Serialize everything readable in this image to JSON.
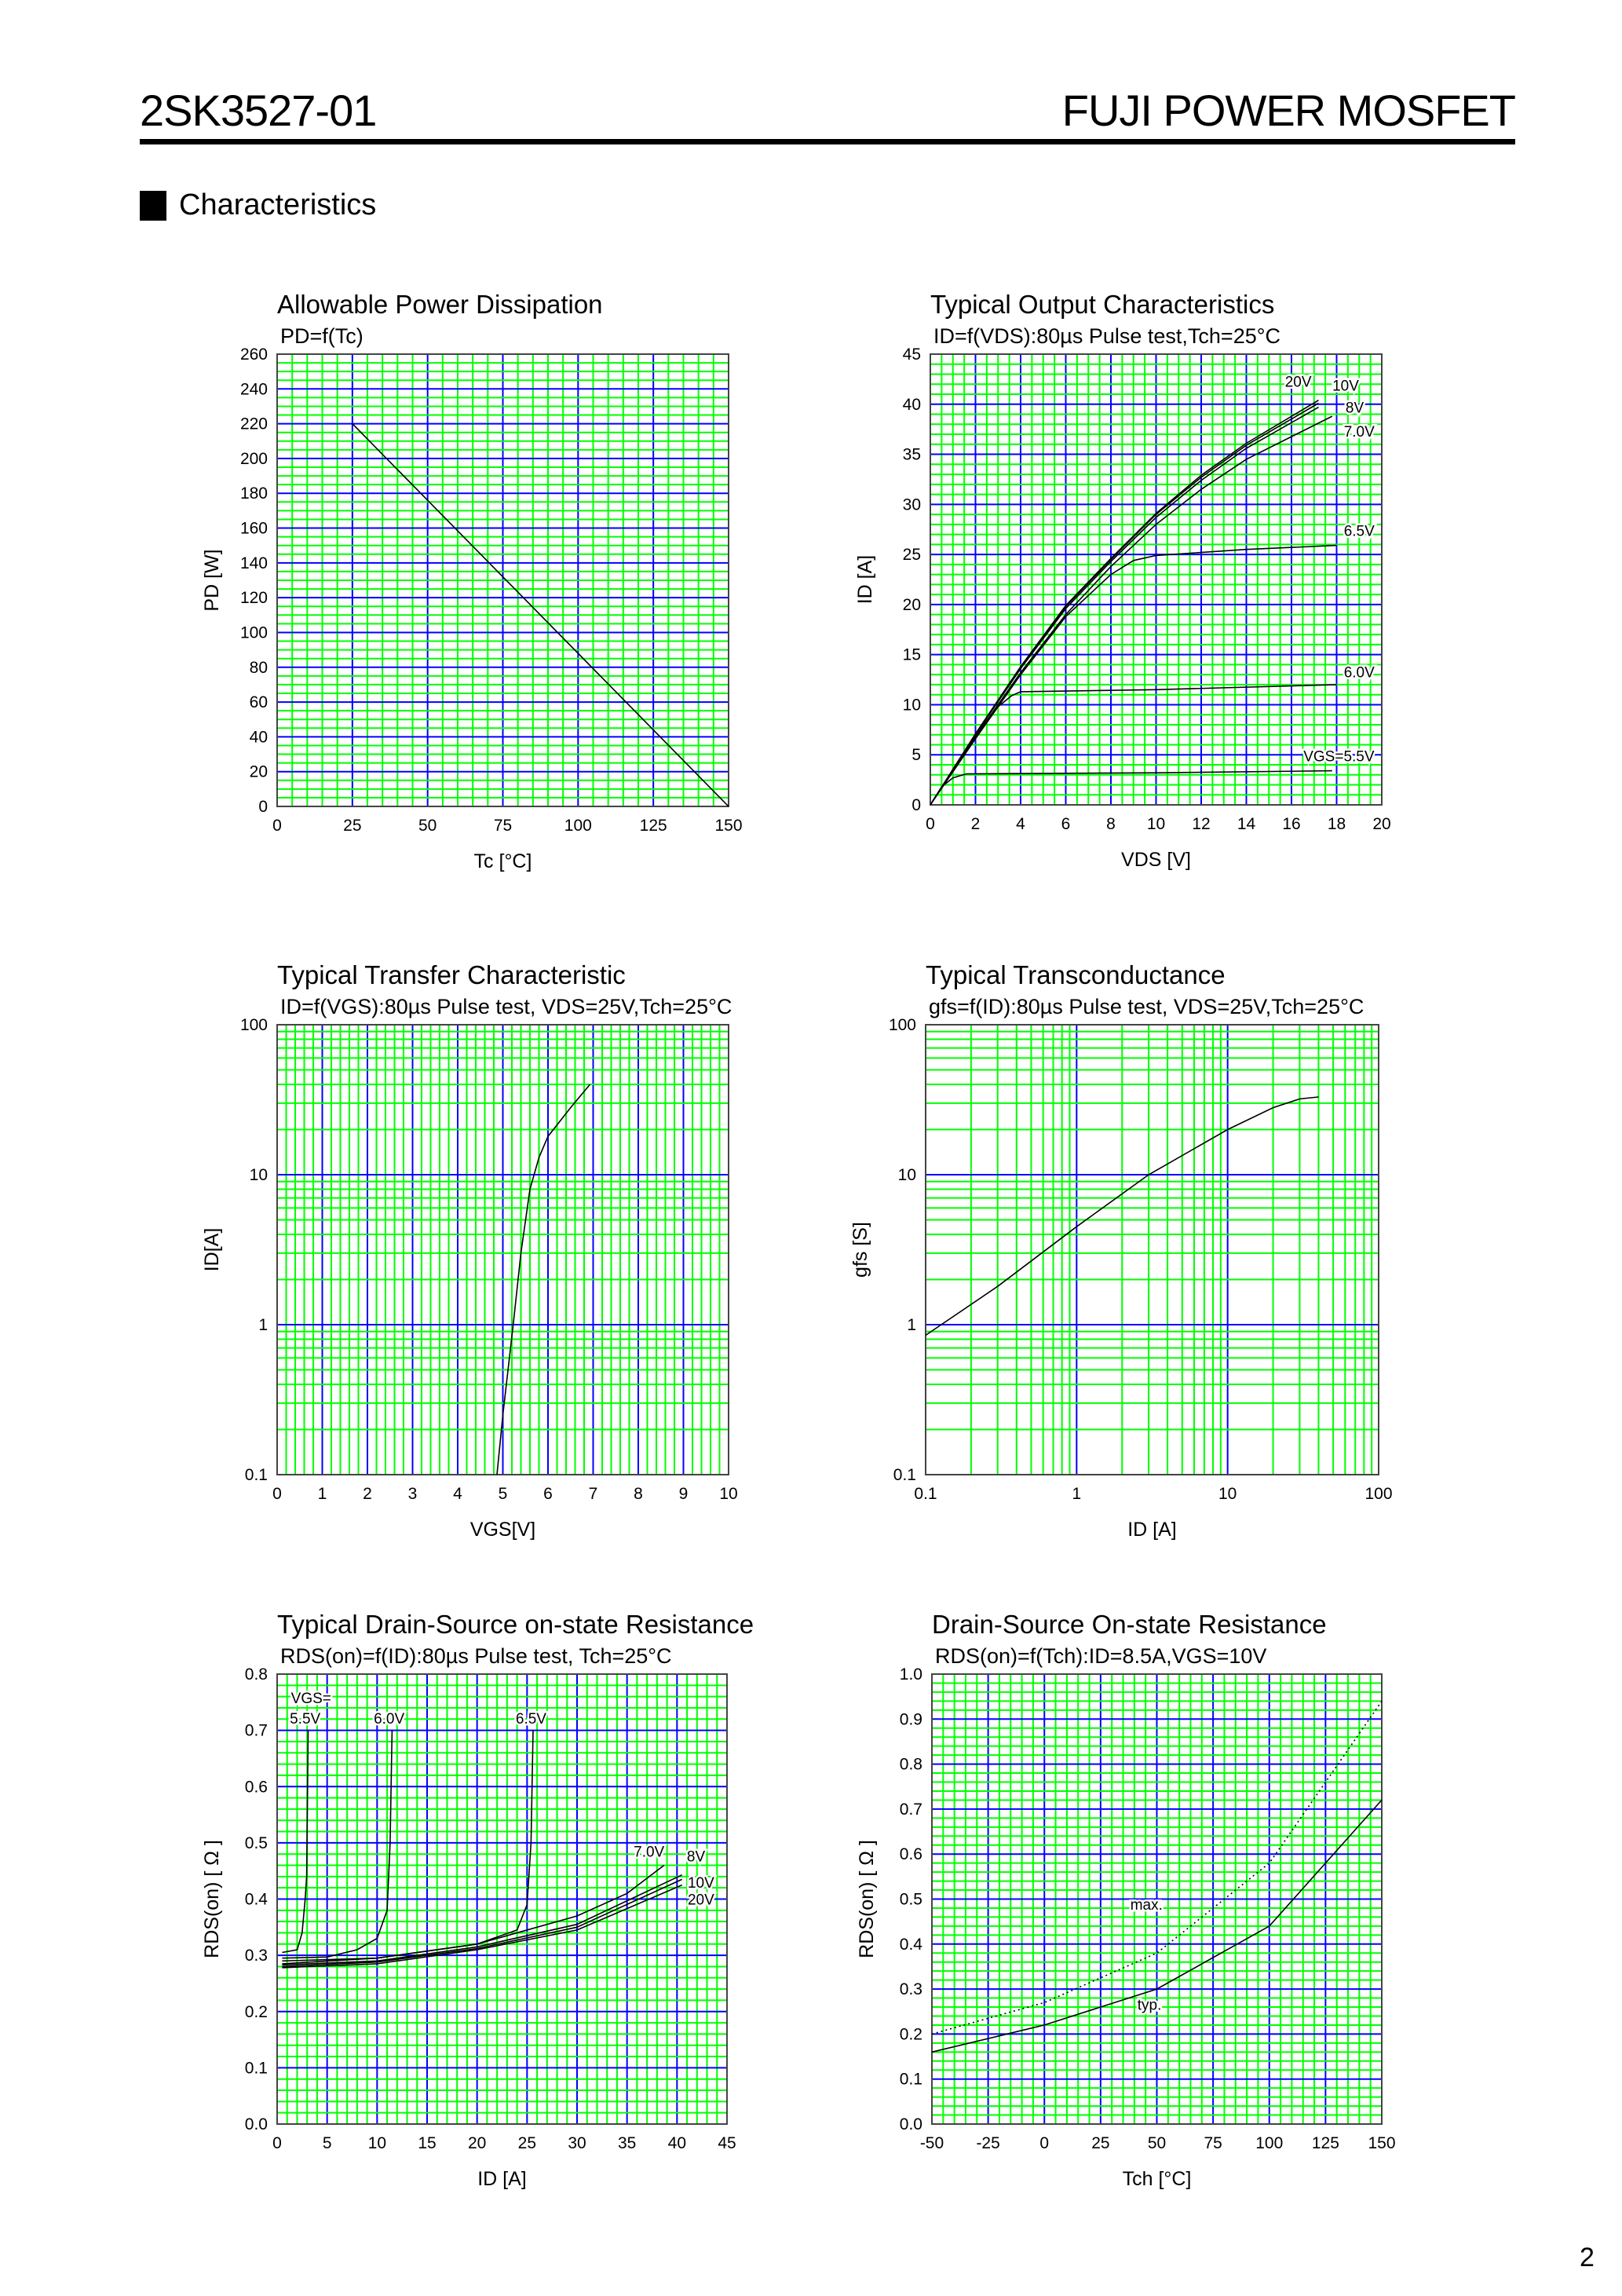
{
  "header": {
    "part_number": "2SK3527-01",
    "brand": "FUJI POWER MOSFET"
  },
  "section_title": "Characteristics",
  "page_number": "2",
  "colors": {
    "grid_minor": "#00ff00",
    "grid_major": "#0000ff",
    "curve": "#000000"
  },
  "chart_data": [
    {
      "type": "line",
      "title": "Allowable Power Dissipation",
      "subtitle": "PD=f(Tc)",
      "xlabel": "Tc [°C]",
      "ylabel": "PD [W]",
      "xlim": [
        0,
        150
      ],
      "ylim": [
        0,
        260
      ],
      "xscale": "linear",
      "yscale": "linear",
      "grid": true,
      "xticks": [
        "0",
        "25",
        "50",
        "75",
        "100",
        "125",
        "150"
      ],
      "yticks": [
        "0",
        "20",
        "40",
        "60",
        "80",
        "100",
        "120",
        "140",
        "160",
        "180",
        "200",
        "220",
        "240",
        "260"
      ],
      "series": [
        {
          "x": [
            25,
            150
          ],
          "y": [
            220,
            0
          ]
        }
      ]
    },
    {
      "type": "line",
      "title": "Typical Output Characteristics",
      "subtitle": "ID=f(VDS):80µs Pulse test,Tch=25°C",
      "xlabel": "VDS [V]",
      "ylabel": "ID [A]",
      "xlim": [
        0,
        20
      ],
      "ylim": [
        0,
        45
      ],
      "xscale": "linear",
      "yscale": "linear",
      "grid": true,
      "xticks": [
        "0",
        "2",
        "4",
        "6",
        "8",
        "10",
        "12",
        "14",
        "16",
        "18",
        "20"
      ],
      "yticks": [
        "0",
        "5",
        "10",
        "15",
        "20",
        "25",
        "30",
        "35",
        "40",
        "45"
      ],
      "series": [
        {
          "name": "20V",
          "x": [
            0,
            2,
            4,
            6,
            8,
            10,
            12,
            14,
            17.2
          ],
          "y": [
            0,
            7.1,
            13.8,
            19.9,
            24.6,
            29.1,
            32.9,
            36.1,
            40.4
          ]
        },
        {
          "name": "10V",
          "x": [
            0,
            2,
            4,
            6,
            8,
            10,
            12,
            14,
            17.2
          ],
          "y": [
            0,
            7.0,
            13.7,
            19.8,
            24.5,
            29.0,
            32.7,
            35.9,
            40.1
          ]
        },
        {
          "name": "8V",
          "x": [
            0,
            2,
            4,
            6,
            8,
            10,
            12,
            14,
            17.2
          ],
          "y": [
            0,
            7.0,
            13.6,
            19.6,
            24.3,
            28.7,
            32.4,
            35.6,
            39.7
          ]
        },
        {
          "name": "7.0V",
          "x": [
            0,
            2,
            4,
            6,
            8,
            10,
            12,
            14,
            17.8
          ],
          "y": [
            0,
            6.8,
            13.2,
            19.0,
            23.8,
            28.0,
            31.5,
            34.5,
            38.8
          ]
        },
        {
          "name": "6.5V",
          "x": [
            0,
            2,
            4,
            6,
            8,
            9,
            10,
            14,
            18
          ],
          "y": [
            0,
            6.6,
            13.0,
            18.8,
            23.0,
            24.4,
            24.9,
            25.5,
            25.9
          ]
        },
        {
          "name": "6.0V",
          "x": [
            0,
            1,
            2,
            3,
            3.6,
            4,
            10,
            18
          ],
          "y": [
            0,
            3.5,
            7.0,
            9.8,
            10.9,
            11.3,
            11.5,
            12.0
          ]
        },
        {
          "name": "VGS=5.5V",
          "x": [
            0,
            0.5,
            1,
            1.6,
            10,
            17.8
          ],
          "y": [
            0,
            1.8,
            2.7,
            3.1,
            3.2,
            3.4
          ]
        }
      ]
    },
    {
      "type": "line",
      "title": "Typical Transfer Characteristic",
      "subtitle": "ID=f(VGS):80µs Pulse test, VDS=25V,Tch=25°C",
      "xlabel": "VGS[V]",
      "ylabel": "ID[A]",
      "xlim": [
        0,
        10
      ],
      "ylim": [
        0.1,
        100
      ],
      "xscale": "linear",
      "yscale": "log",
      "grid": true,
      "xticks": [
        "0",
        "1",
        "2",
        "3",
        "4",
        "5",
        "6",
        "7",
        "8",
        "9",
        "10"
      ],
      "yticks": [
        "0.1",
        "1",
        "10",
        "100"
      ],
      "series": [
        {
          "x": [
            4.87,
            5.0,
            5.23,
            5.4,
            5.6,
            5.8,
            6.0,
            6.5,
            6.93
          ],
          "y": [
            0.1,
            0.25,
            1,
            3,
            8,
            13,
            18,
            28,
            40
          ]
        }
      ]
    },
    {
      "type": "line",
      "title": "Typical Transconductance",
      "subtitle": "gfs=f(ID):80µs Pulse test, VDS=25V,Tch=25°C",
      "xlabel": "ID [A]",
      "ylabel": "gfs [S]",
      "xlim": [
        0.1,
        100
      ],
      "ylim": [
        0.1,
        100
      ],
      "xscale": "log",
      "yscale": "log",
      "grid": true,
      "xticks": [
        "0.1",
        "1",
        "10",
        "100"
      ],
      "yticks": [
        "0.1",
        "1",
        "10",
        "100"
      ],
      "series": [
        {
          "x": [
            0.1,
            0.3,
            1,
            3,
            10,
            20,
            30,
            40
          ],
          "y": [
            0.85,
            1.8,
            4.5,
            10,
            20,
            28,
            32,
            33
          ]
        }
      ]
    },
    {
      "type": "line",
      "title": "Typical Drain-Source on-state Resistance",
      "subtitle": "RDS(on)=f(ID):80µs Pulse test, Tch=25°C",
      "xlabel": "ID [A]",
      "ylabel": "RDS(on) [ Ω ]",
      "xlim": [
        0,
        45
      ],
      "ylim": [
        0,
        0.8
      ],
      "xscale": "linear",
      "yscale": "linear",
      "grid": true,
      "xticks": [
        "0",
        "5",
        "10",
        "15",
        "20",
        "25",
        "30",
        "35",
        "40",
        "45"
      ],
      "yticks": [
        "0.0",
        "0.1",
        "0.2",
        "0.3",
        "0.4",
        "0.5",
        "0.6",
        "0.7",
        "0.8"
      ],
      "annotation": "VGS=",
      "series": [
        {
          "name": "5.5V",
          "x": [
            0.5,
            2,
            2.5,
            2.8,
            2.95,
            3.1
          ],
          "y": [
            0.305,
            0.31,
            0.34,
            0.4,
            0.44,
            0.7
          ]
        },
        {
          "name": "6.0V",
          "x": [
            0.5,
            5,
            8,
            10,
            11,
            11.3,
            11.5
          ],
          "y": [
            0.295,
            0.297,
            0.31,
            0.33,
            0.38,
            0.5,
            0.7
          ]
        },
        {
          "name": "6.5V",
          "x": [
            0.5,
            10,
            20,
            24,
            25,
            25.4,
            25.6
          ],
          "y": [
            0.29,
            0.295,
            0.32,
            0.345,
            0.39,
            0.5,
            0.7
          ]
        },
        {
          "name": "7.0V",
          "x": [
            0.5,
            10,
            20,
            30,
            35,
            38.7
          ],
          "y": [
            0.285,
            0.295,
            0.32,
            0.37,
            0.41,
            0.46
          ]
        },
        {
          "name": "8V",
          "x": [
            0.5,
            10,
            20,
            30,
            40.5
          ],
          "y": [
            0.283,
            0.29,
            0.315,
            0.355,
            0.443
          ]
        },
        {
          "name": "10V",
          "x": [
            0.5,
            10,
            20,
            30,
            40.5
          ],
          "y": [
            0.28,
            0.288,
            0.312,
            0.35,
            0.435
          ]
        },
        {
          "name": "20V",
          "x": [
            0.5,
            10,
            20,
            30,
            40.5
          ],
          "y": [
            0.278,
            0.285,
            0.31,
            0.345,
            0.425
          ]
        }
      ]
    },
    {
      "type": "line",
      "title": "Drain-Source On-state Resistance",
      "subtitle": "RDS(on)=f(Tch):ID=8.5A,VGS=10V",
      "xlabel": "Tch [°C]",
      "ylabel": "RDS(on) [ Ω ]",
      "xlim": [
        -50,
        150
      ],
      "ylim": [
        0,
        1.0
      ],
      "xscale": "linear",
      "yscale": "linear",
      "grid": true,
      "xticks": [
        "-50",
        "-25",
        "0",
        "25",
        "50",
        "75",
        "100",
        "125",
        "150"
      ],
      "yticks": [
        "0.0",
        "0.1",
        "0.2",
        "0.3",
        "0.4",
        "0.5",
        "0.6",
        "0.7",
        "0.8",
        "0.9",
        "1.0"
      ],
      "series": [
        {
          "name": "max.",
          "dashed": true,
          "x": [
            -50,
            0,
            50,
            100,
            150
          ],
          "y": [
            0.2,
            0.27,
            0.38,
            0.58,
            0.94
          ]
        },
        {
          "name": "typ.",
          "x": [
            -50,
            0,
            50,
            100,
            150
          ],
          "y": [
            0.16,
            0.22,
            0.3,
            0.44,
            0.72
          ]
        }
      ]
    }
  ]
}
